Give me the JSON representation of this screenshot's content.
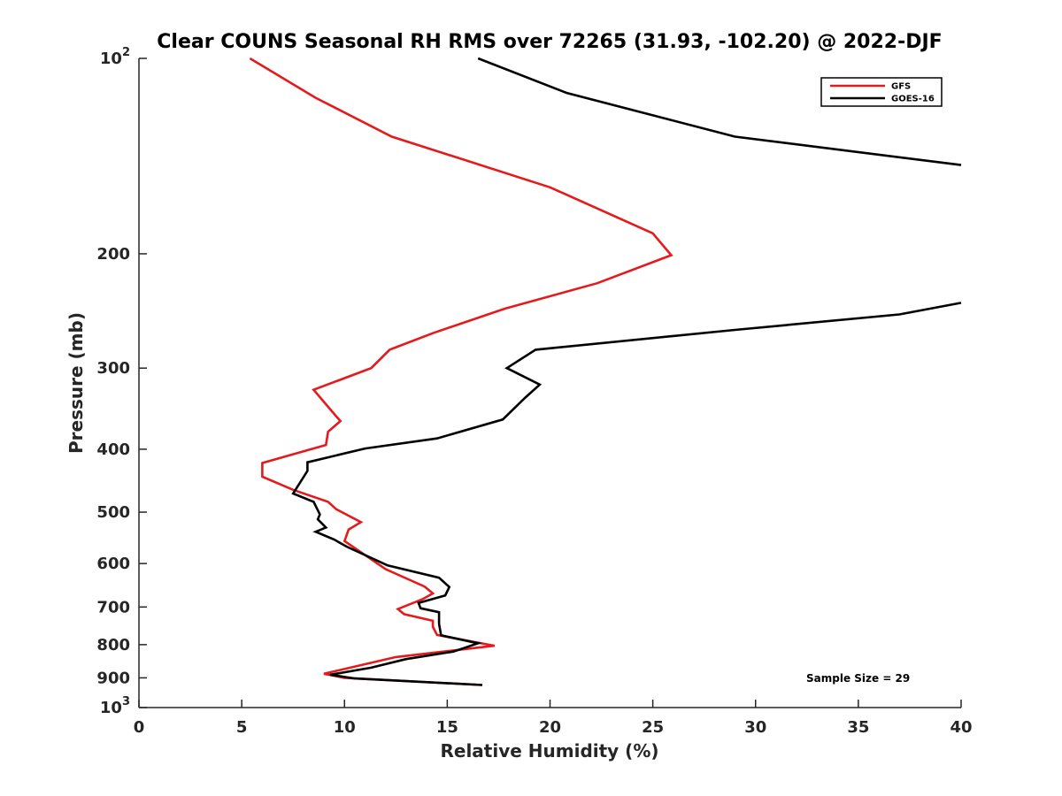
{
  "chart_data": {
    "type": "line",
    "title": "Clear COUNS Seasonal RH RMS over 72265 (31.93, -102.20) @ 2022-DJF",
    "xlabel": "Relative Humidity (%)",
    "ylabel": "Pressure (mb)",
    "xlim": [
      0,
      40
    ],
    "ylim": [
      100,
      1000
    ],
    "yscale": "log",
    "y_reversed": true,
    "grid": false,
    "legend_position": "top-right",
    "x_ticks": [
      0,
      5,
      10,
      15,
      20,
      25,
      30,
      35,
      40
    ],
    "x_tick_labels": [
      "0",
      "5",
      "10",
      "15",
      "20",
      "25",
      "30",
      "35",
      "40"
    ],
    "y_ticks": [
      100,
      200,
      300,
      400,
      500,
      600,
      700,
      800,
      900,
      1000
    ],
    "y_tick_labels": [
      {
        "base": "10",
        "exp": "2"
      },
      {
        "text": "200"
      },
      {
        "text": "300"
      },
      {
        "text": "400"
      },
      {
        "text": "500"
      },
      {
        "text": "600"
      },
      {
        "text": "700"
      },
      {
        "text": "800"
      },
      {
        "text": "900"
      },
      {
        "base": "10",
        "exp": "3"
      }
    ],
    "annotation": "Sample Size = 29",
    "series": [
      {
        "name": "GFS",
        "color": "#e41a1c",
        "x": [
          5.4,
          8.6,
          12.3,
          20.0,
          25.0,
          25.9,
          22.3,
          17.8,
          14.3,
          12.2,
          11.3,
          8.5,
          9.3,
          9.8,
          9.2,
          9.1,
          6.0,
          6.0,
          7.5,
          9.2,
          9.6,
          10.8,
          10.2,
          10.0,
          12.0,
          13.9,
          14.3,
          13.8,
          12.6,
          12.9,
          14.3,
          14.3,
          14.5,
          17.3,
          12.5,
          9.0,
          10.0,
          16.7
        ],
        "y": [
          100,
          115,
          132,
          158,
          186,
          201,
          222,
          243,
          265,
          281,
          300,
          324,
          347,
          362,
          376,
          394,
          420,
          441,
          462,
          482,
          495,
          518,
          532,
          554,
          612,
          651,
          667,
          681,
          705,
          718,
          735,
          751,
          773,
          803,
          836,
          887,
          900,
          923
        ]
      },
      {
        "name": "GOES-16",
        "color": "#000000",
        "x": [
          16.5,
          20.8,
          29.0,
          40.0,
          null,
          40.0,
          37.0,
          29.0,
          19.3,
          17.9,
          19.5,
          18.8,
          17.7,
          14.5,
          11.0,
          8.2,
          8.2,
          7.5,
          8.5,
          8.8,
          8.7,
          9.1,
          8.6,
          9.5,
          10.1,
          12.1,
          14.6,
          15.1,
          14.9,
          13.6,
          13.7,
          14.6,
          14.6,
          14.7,
          16.5,
          15.3,
          13.0,
          11.3,
          9.3,
          10.5,
          16.7
        ],
        "y": [
          100,
          113,
          132,
          146,
          null,
          238,
          248,
          262,
          281,
          300,
          318,
          333,
          360,
          385,
          399,
          419,
          432,
          468,
          482,
          504,
          513,
          528,
          536,
          551,
          565,
          604,
          631,
          652,
          672,
          690,
          703,
          713,
          743,
          774,
          796,
          820,
          842,
          868,
          890,
          902,
          923
        ]
      }
    ]
  }
}
